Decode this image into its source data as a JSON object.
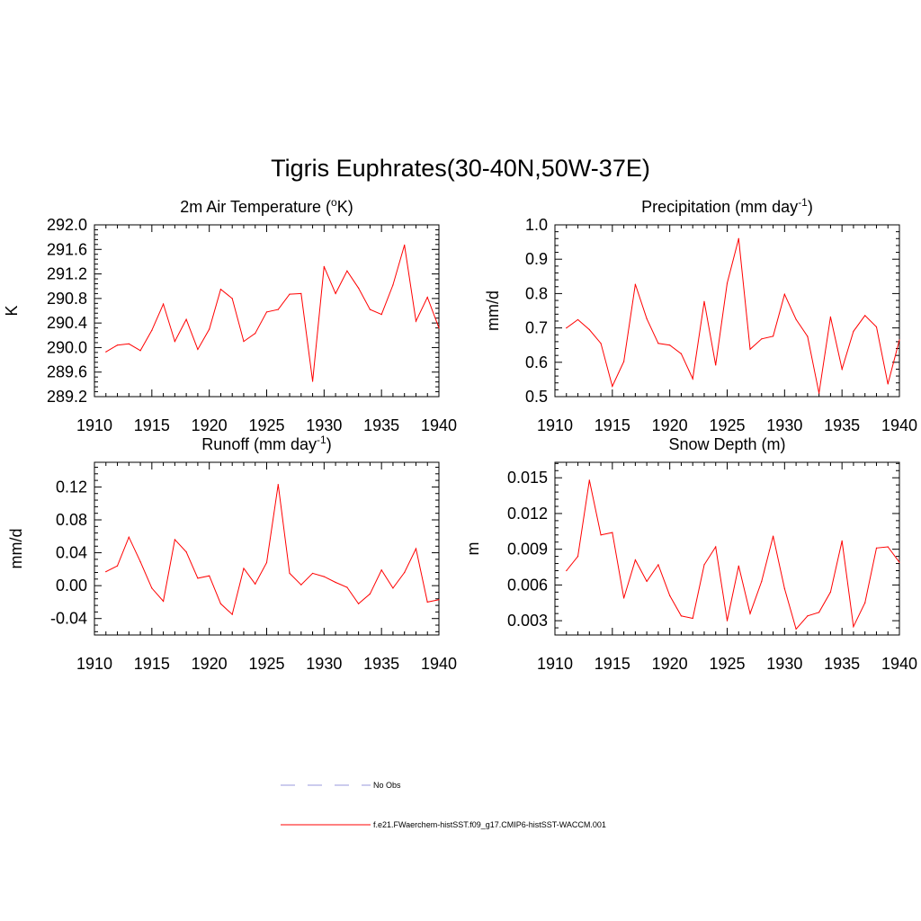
{
  "figure": {
    "title": "Tigris Euphrates(30-40N,50W-37E)"
  },
  "legend": {
    "items": [
      {
        "label": "No Obs",
        "color": "#9999dd",
        "dashed": true
      },
      {
        "label": "f.e21.FWaerchem-histSST.f09_g17.CMIP6-histSST-WACCM.001",
        "color": "#ff0000",
        "dashed": false
      }
    ]
  },
  "chart_data": [
    {
      "type": "line",
      "title_pre": "2m Air Temperature (",
      "title_sup": "o",
      "title_post": "K)",
      "ylabel": "K",
      "xlim": [
        1910,
        1940
      ],
      "ylim": [
        289.2,
        292.0
      ],
      "xticks": [
        1910,
        1915,
        1920,
        1925,
        1930,
        1935,
        1940
      ],
      "yticks": [
        "289.2",
        "289.6",
        "290.0",
        "290.4",
        "290.8",
        "291.2",
        "291.6",
        "292.0"
      ],
      "color": "#ff0000",
      "x": [
        1911,
        1912,
        1913,
        1914,
        1915,
        1916,
        1917,
        1918,
        1919,
        1920,
        1921,
        1922,
        1923,
        1924,
        1925,
        1926,
        1927,
        1928,
        1929,
        1930,
        1931,
        1932,
        1933,
        1934,
        1935,
        1936,
        1937,
        1938,
        1939,
        1940
      ],
      "values": [
        289.93,
        290.04,
        290.06,
        289.95,
        290.28,
        290.71,
        290.1,
        290.46,
        289.97,
        290.3,
        290.95,
        290.8,
        290.1,
        290.23,
        290.58,
        290.62,
        290.87,
        290.88,
        289.45,
        291.32,
        290.88,
        291.25,
        290.97,
        290.62,
        290.54,
        291.02,
        291.67,
        290.43,
        290.82,
        290.32
      ]
    },
    {
      "type": "line",
      "title_pre": "Precipitation (mm day",
      "title_sup": "-1",
      "title_post": ")",
      "ylabel": "mm/d",
      "xlim": [
        1910,
        1940
      ],
      "ylim": [
        0.5,
        1.0
      ],
      "xticks": [
        1910,
        1915,
        1920,
        1925,
        1930,
        1935,
        1940
      ],
      "yticks": [
        "0.5",
        "0.6",
        "0.7",
        "0.8",
        "0.9",
        "1.0"
      ],
      "color": "#ff0000",
      "x": [
        1911,
        1912,
        1913,
        1914,
        1915,
        1916,
        1917,
        1918,
        1919,
        1920,
        1921,
        1922,
        1923,
        1924,
        1925,
        1926,
        1927,
        1928,
        1929,
        1930,
        1931,
        1932,
        1933,
        1934,
        1935,
        1936,
        1937,
        1938,
        1939,
        1940
      ],
      "values": [
        0.7,
        0.724,
        0.695,
        0.655,
        0.53,
        0.602,
        0.827,
        0.727,
        0.655,
        0.65,
        0.625,
        0.552,
        0.777,
        0.592,
        0.83,
        0.96,
        0.638,
        0.668,
        0.676,
        0.798,
        0.725,
        0.675,
        0.51,
        0.732,
        0.58,
        0.69,
        0.736,
        0.703,
        0.537,
        0.665
      ]
    },
    {
      "type": "line",
      "title_pre": "Runoff (mm day",
      "title_sup": "-1",
      "title_post": ")",
      "ylabel": "mm/d",
      "xlim": [
        1910,
        1940
      ],
      "ylim": [
        -0.06,
        0.15
      ],
      "xticks": [
        1910,
        1915,
        1920,
        1925,
        1930,
        1935,
        1940
      ],
      "yticks": [
        "-0.04",
        "0.00",
        "0.04",
        "0.08",
        "0.12"
      ],
      "color": "#ff0000",
      "x": [
        1911,
        1912,
        1913,
        1914,
        1915,
        1916,
        1917,
        1918,
        1919,
        1920,
        1921,
        1922,
        1923,
        1924,
        1925,
        1926,
        1927,
        1928,
        1929,
        1930,
        1931,
        1932,
        1933,
        1934,
        1935,
        1936,
        1937,
        1938,
        1939,
        1940
      ],
      "values": [
        0.017,
        0.024,
        0.059,
        0.029,
        -0.003,
        -0.019,
        0.056,
        0.041,
        0.009,
        0.012,
        -0.022,
        -0.035,
        0.021,
        0.002,
        0.028,
        0.123,
        0.015,
        0.001,
        0.015,
        0.011,
        0.004,
        -0.002,
        -0.022,
        -0.01,
        0.019,
        -0.003,
        0.016,
        0.045,
        -0.02,
        -0.017
      ]
    },
    {
      "type": "line",
      "title_pre": "Snow Depth (m)",
      "title_sup": "",
      "title_post": "",
      "ylabel": "m",
      "xlim": [
        1910,
        1940
      ],
      "ylim": [
        0.0018,
        0.0163
      ],
      "xticks": [
        1910,
        1915,
        1920,
        1925,
        1930,
        1935,
        1940
      ],
      "yticks": [
        "0.003",
        "0.006",
        "0.009",
        "0.012",
        "0.015"
      ],
      "color": "#ff0000",
      "x": [
        1911,
        1912,
        1913,
        1914,
        1915,
        1916,
        1917,
        1918,
        1919,
        1920,
        1921,
        1922,
        1923,
        1924,
        1925,
        1926,
        1927,
        1928,
        1929,
        1930,
        1931,
        1932,
        1933,
        1934,
        1935,
        1936,
        1937,
        1938,
        1939,
        1940
      ],
      "values": [
        0.0072,
        0.0084,
        0.0148,
        0.0102,
        0.0104,
        0.0049,
        0.0081,
        0.0063,
        0.0077,
        0.0051,
        0.0034,
        0.0032,
        0.0077,
        0.0092,
        0.003,
        0.0076,
        0.0036,
        0.0063,
        0.0101,
        0.0057,
        0.0023,
        0.0034,
        0.0037,
        0.0054,
        0.0097,
        0.0025,
        0.0045,
        0.0091,
        0.0092,
        0.0079
      ]
    }
  ]
}
